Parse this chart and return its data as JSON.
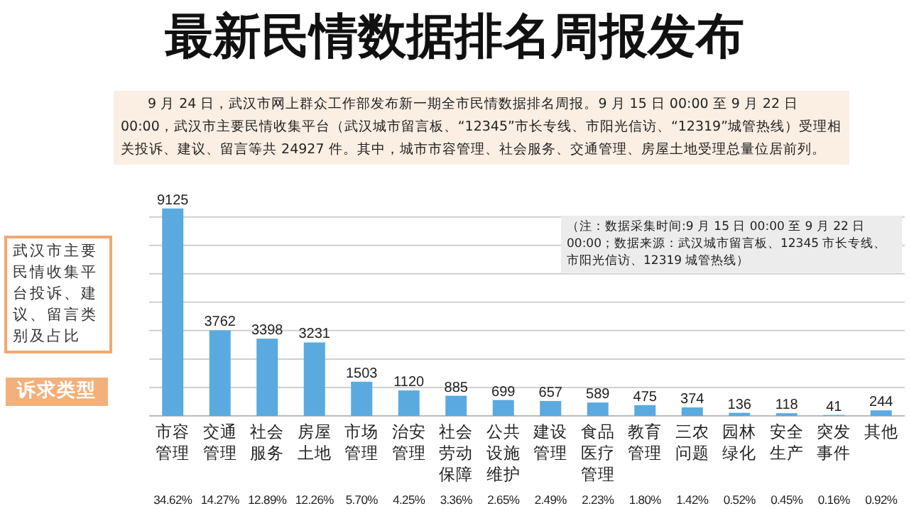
{
  "chart_data": {
    "type": "bar",
    "title": "最新民情数据排名周报发布",
    "subtitle": "武汉市主要民情收集平台投诉、建议、留言类别及占比",
    "xlabel": "诉求类型",
    "categories": [
      "市容管理",
      "交通管理",
      "社会服务",
      "房屋土地",
      "市场管理",
      "治安管理",
      "社会劳动保障",
      "公共设施维护",
      "建设管理",
      "食品医疗管理",
      "教育管理",
      "三农问题",
      "园林绿化",
      "安全生产",
      "突发事件",
      "其他"
    ],
    "values": [
      9125,
      3762,
      3398,
      3231,
      1503,
      1120,
      885,
      699,
      657,
      589,
      475,
      374,
      136,
      118,
      41,
      244
    ],
    "color": "#5aaae0",
    "data_labels": true,
    "yticks": [
      {
        "value": 1250,
        "label": null
      },
      {
        "value": 2500,
        "label": null
      },
      {
        "value": 3750,
        "label": null
      },
      {
        "value": 5000,
        "label": null
      },
      {
        "value": 6250,
        "label": null
      },
      {
        "value": 7500,
        "label": null
      },
      {
        "value": 8750,
        "label": null
      }
    ],
    "grid": "y",
    "annotations": [
      "9 月 24 日，武汉市网上群众工作部发布新一期全市民情数据排名周报。9 月 15 日 00:00 至 9 月 22 日 00:00，武汉市主要民情收集平台（武汉城市留言板、“12345”市长专线、市阳光信访、“12319”城管热线）受理相关投诉、建议、留言等共 24927 件。其中，城市市容管理、社会服务、交通管理、房屋土地受理总量位居前列。",
      "（注：数据采集时间:9 月 15 日 00:00 至 9 月 22 日 00:00；数据来源：武汉城市留言板、12345 市长专线、市阳光信访、12319 城管热线）",
      "34.62%",
      "14.27%",
      "12.89%",
      "12.26%",
      "5.70%",
      "4.25%",
      "3.36%",
      "2.65%",
      "2.49%",
      "2.23%",
      "1.80%",
      "1.42%",
      "0.52%",
      "0.45%",
      "0.16%",
      "0.92%"
    ]
  }
}
